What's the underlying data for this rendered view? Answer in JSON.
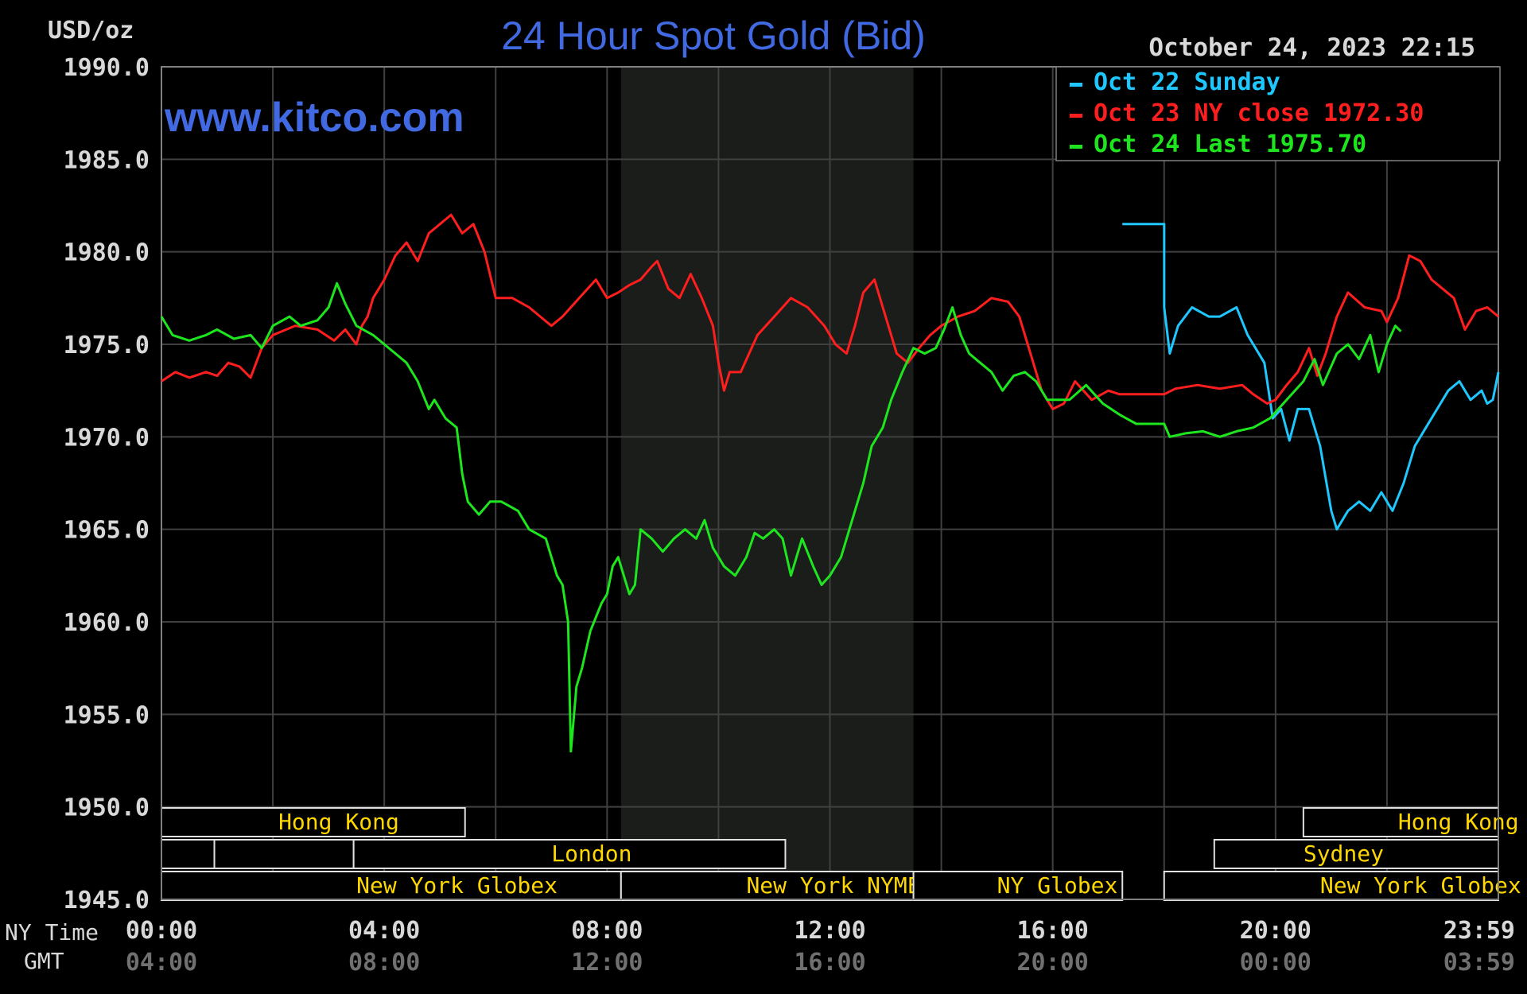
{
  "header": {
    "unit": "USD/oz",
    "title": "24 Hour Spot Gold (Bid)",
    "timestamp": "October 24, 2023 22:15",
    "watermark": "www.kitco.com"
  },
  "axis_labels": {
    "ny_time": "NY Time",
    "gmt": "GMT"
  },
  "colors": {
    "background": "#000000",
    "grid": "#404040",
    "plot_border": "#808080",
    "title": "#4169e1",
    "watermark": "#4169e1",
    "shaded_region": "#1a1d1a",
    "session_text": "#ffd700",
    "session_border": "#e0e0e0",
    "cyan": "#1ec8ff",
    "red": "#ff1e1e",
    "green": "#1ee61e",
    "axis_text": "#d8d8d8",
    "gmt_text": "#707070"
  },
  "legend": [
    {
      "label": "Oct 22 Sunday",
      "color": "#1ec8ff"
    },
    {
      "label": "Oct 23 NY close 1972.30",
      "color": "#ff1e1e"
    },
    {
      "label": "Oct 24 Last 1975.70",
      "color": "#1ee61e"
    }
  ],
  "sessions": [
    {
      "label": "Hong Kong",
      "row": 0,
      "start": 0,
      "end": 5.45,
      "label_at": 2.1
    },
    {
      "label": "Hong Kong",
      "row": 0,
      "start": 20.5,
      "end": 24,
      "label_at": 22.2
    },
    {
      "label": "",
      "row": 1,
      "start": 0,
      "end": 0.95
    },
    {
      "label": "",
      "row": 1,
      "start": 0.95,
      "end": 3.45
    },
    {
      "label": "London",
      "row": 1,
      "start": 3.45,
      "end": 11.2,
      "label_at": 7.0
    },
    {
      "label": "Sydney",
      "row": 1,
      "start": 18.9,
      "end": 24,
      "label_at": 20.5
    },
    {
      "label": "New York Globex",
      "row": 2,
      "start": 0,
      "end": 8.25,
      "label_at": 3.5
    },
    {
      "label": "New York NYMEX",
      "row": 2,
      "start": 8.25,
      "end": 13.5,
      "label_at": 10.5
    },
    {
      "label": "NY Globex",
      "row": 2,
      "start": 13.5,
      "end": 17.25,
      "label_at": 15.0
    },
    {
      "label": "New York Globex",
      "row": 2,
      "start": 18.0,
      "end": 24,
      "label_at": 20.8
    }
  ],
  "chart_data": {
    "type": "line",
    "title": "24 Hour Spot Gold (Bid)",
    "ylabel": "USD/oz",
    "xlabel": "NY Time",
    "xlim": [
      0,
      24
    ],
    "ylim": [
      1945,
      1990
    ],
    "y_ticks": [
      "1990.0",
      "1985.0",
      "1980.0",
      "1975.0",
      "1970.0",
      "1965.0",
      "1960.0",
      "1955.0",
      "1950.0",
      "1945.0"
    ],
    "y_tick_values": [
      1990,
      1985,
      1980,
      1975,
      1970,
      1965,
      1960,
      1955,
      1950,
      1945
    ],
    "x_ticks_ny": [
      "00:00",
      "04:00",
      "08:00",
      "12:00",
      "16:00",
      "20:00",
      "23:59"
    ],
    "x_ticks_gmt": [
      "04:00",
      "08:00",
      "12:00",
      "16:00",
      "20:00",
      "00:00",
      "03:59"
    ],
    "x_tick_values": [
      0,
      4,
      8,
      12,
      16,
      20,
      24
    ],
    "grid_vertical_hours": [
      2,
      4,
      6,
      8,
      10,
      12,
      14,
      16,
      18,
      20,
      22
    ],
    "grid": true,
    "legend_position": "top-right",
    "shaded_hours": [
      8.25,
      13.5
    ],
    "series": [
      {
        "name": "Oct 22 Sunday",
        "color": "#1ec8ff",
        "points": [
          [
            17.25,
            1981.5
          ],
          [
            18.0,
            1981.5
          ],
          [
            18.0,
            1977.0
          ],
          [
            18.1,
            1974.5
          ],
          [
            18.25,
            1976.0
          ],
          [
            18.5,
            1977.0
          ],
          [
            18.8,
            1976.5
          ],
          [
            19.0,
            1976.5
          ],
          [
            19.3,
            1977.0
          ],
          [
            19.5,
            1975.5
          ],
          [
            19.8,
            1974.0
          ],
          [
            19.95,
            1971.0
          ],
          [
            20.1,
            1971.5
          ],
          [
            20.25,
            1969.8
          ],
          [
            20.4,
            1971.5
          ],
          [
            20.6,
            1971.5
          ],
          [
            20.8,
            1969.5
          ],
          [
            21.0,
            1966.0
          ],
          [
            21.1,
            1965.0
          ],
          [
            21.3,
            1966.0
          ],
          [
            21.5,
            1966.5
          ],
          [
            21.7,
            1966.0
          ],
          [
            21.9,
            1967.0
          ],
          [
            22.1,
            1966.0
          ],
          [
            22.3,
            1967.5
          ],
          [
            22.5,
            1969.5
          ],
          [
            22.7,
            1970.5
          ],
          [
            22.9,
            1971.5
          ],
          [
            23.1,
            1972.5
          ],
          [
            23.3,
            1973.0
          ],
          [
            23.5,
            1972.0
          ],
          [
            23.7,
            1972.5
          ],
          [
            23.8,
            1971.8
          ],
          [
            23.9,
            1972.0
          ],
          [
            24.0,
            1973.5
          ]
        ]
      },
      {
        "name": "Oct 23 NY close 1972.30",
        "color": "#ff1e1e",
        "points": [
          [
            0.0,
            1973.0
          ],
          [
            0.25,
            1973.5
          ],
          [
            0.5,
            1973.2
          ],
          [
            0.8,
            1973.5
          ],
          [
            1.0,
            1973.3
          ],
          [
            1.2,
            1974.0
          ],
          [
            1.4,
            1973.8
          ],
          [
            1.6,
            1973.2
          ],
          [
            1.8,
            1974.8
          ],
          [
            2.0,
            1975.5
          ],
          [
            2.4,
            1976.0
          ],
          [
            2.8,
            1975.8
          ],
          [
            3.1,
            1975.2
          ],
          [
            3.3,
            1975.8
          ],
          [
            3.5,
            1975.0
          ],
          [
            3.6,
            1976.0
          ],
          [
            3.7,
            1976.5
          ],
          [
            3.8,
            1977.5
          ],
          [
            4.0,
            1978.5
          ],
          [
            4.2,
            1979.8
          ],
          [
            4.4,
            1980.5
          ],
          [
            4.6,
            1979.5
          ],
          [
            4.8,
            1981.0
          ],
          [
            5.0,
            1981.5
          ],
          [
            5.2,
            1982.0
          ],
          [
            5.4,
            1981.0
          ],
          [
            5.6,
            1981.5
          ],
          [
            5.8,
            1980.0
          ],
          [
            6.0,
            1977.5
          ],
          [
            6.3,
            1977.5
          ],
          [
            6.6,
            1977.0
          ],
          [
            6.8,
            1976.5
          ],
          [
            7.0,
            1976.0
          ],
          [
            7.2,
            1976.5
          ],
          [
            7.5,
            1977.5
          ],
          [
            7.8,
            1978.5
          ],
          [
            8.0,
            1977.5
          ],
          [
            8.2,
            1977.8
          ],
          [
            8.4,
            1978.2
          ],
          [
            8.6,
            1978.5
          ],
          [
            8.8,
            1979.2
          ],
          [
            8.9,
            1979.5
          ],
          [
            9.1,
            1978.0
          ],
          [
            9.3,
            1977.5
          ],
          [
            9.5,
            1978.8
          ],
          [
            9.7,
            1977.5
          ],
          [
            9.9,
            1976.0
          ],
          [
            10.0,
            1974.0
          ],
          [
            10.1,
            1972.5
          ],
          [
            10.2,
            1973.5
          ],
          [
            10.4,
            1973.5
          ],
          [
            10.7,
            1975.5
          ],
          [
            11.0,
            1976.5
          ],
          [
            11.3,
            1977.5
          ],
          [
            11.6,
            1977.0
          ],
          [
            11.9,
            1976.0
          ],
          [
            12.1,
            1975.0
          ],
          [
            12.3,
            1974.5
          ],
          [
            12.45,
            1976.0
          ],
          [
            12.6,
            1977.8
          ],
          [
            12.8,
            1978.5
          ],
          [
            13.0,
            1976.5
          ],
          [
            13.2,
            1974.5
          ],
          [
            13.4,
            1974.0
          ],
          [
            13.6,
            1974.8
          ],
          [
            13.8,
            1975.5
          ],
          [
            14.0,
            1976.0
          ],
          [
            14.3,
            1976.5
          ],
          [
            14.6,
            1976.8
          ],
          [
            14.9,
            1977.5
          ],
          [
            15.2,
            1977.3
          ],
          [
            15.4,
            1976.5
          ],
          [
            15.6,
            1974.5
          ],
          [
            15.8,
            1972.5
          ],
          [
            16.0,
            1971.5
          ],
          [
            16.2,
            1971.8
          ],
          [
            16.4,
            1973.0
          ],
          [
            16.7,
            1972.0
          ],
          [
            17.0,
            1972.5
          ],
          [
            17.2,
            1972.3
          ],
          [
            17.5,
            1972.3
          ],
          [
            18.0,
            1972.3
          ],
          [
            18.2,
            1972.6
          ],
          [
            18.6,
            1972.8
          ],
          [
            19.0,
            1972.6
          ],
          [
            19.4,
            1972.8
          ],
          [
            19.6,
            1972.3
          ],
          [
            19.85,
            1971.8
          ],
          [
            20.0,
            1972.0
          ],
          [
            20.2,
            1972.8
          ],
          [
            20.4,
            1973.5
          ],
          [
            20.6,
            1974.8
          ],
          [
            20.75,
            1973.3
          ],
          [
            20.9,
            1974.5
          ],
          [
            21.1,
            1976.5
          ],
          [
            21.3,
            1977.8
          ],
          [
            21.6,
            1977.0
          ],
          [
            21.9,
            1976.8
          ],
          [
            22.0,
            1976.2
          ],
          [
            22.2,
            1977.5
          ],
          [
            22.4,
            1979.8
          ],
          [
            22.6,
            1979.5
          ],
          [
            22.8,
            1978.5
          ],
          [
            23.0,
            1978.0
          ],
          [
            23.2,
            1977.5
          ],
          [
            23.4,
            1975.8
          ],
          [
            23.6,
            1976.8
          ],
          [
            23.8,
            1977.0
          ],
          [
            24.0,
            1976.5
          ]
        ]
      },
      {
        "name": "Oct 24 Last 1975.70",
        "color": "#1ee61e",
        "points": [
          [
            0.0,
            1976.5
          ],
          [
            0.2,
            1975.5
          ],
          [
            0.5,
            1975.2
          ],
          [
            0.8,
            1975.5
          ],
          [
            1.0,
            1975.8
          ],
          [
            1.3,
            1975.3
          ],
          [
            1.6,
            1975.5
          ],
          [
            1.8,
            1974.8
          ],
          [
            2.0,
            1976.0
          ],
          [
            2.3,
            1976.5
          ],
          [
            2.5,
            1976.0
          ],
          [
            2.8,
            1976.3
          ],
          [
            3.0,
            1977.0
          ],
          [
            3.15,
            1978.3
          ],
          [
            3.3,
            1977.2
          ],
          [
            3.5,
            1976.0
          ],
          [
            3.8,
            1975.5
          ],
          [
            4.0,
            1975.0
          ],
          [
            4.2,
            1974.5
          ],
          [
            4.4,
            1974.0
          ],
          [
            4.6,
            1973.0
          ],
          [
            4.8,
            1971.5
          ],
          [
            4.9,
            1972.0
          ],
          [
            5.1,
            1971.0
          ],
          [
            5.3,
            1970.5
          ],
          [
            5.4,
            1968.0
          ],
          [
            5.5,
            1966.5
          ],
          [
            5.7,
            1965.8
          ],
          [
            5.9,
            1966.5
          ],
          [
            6.1,
            1966.5
          ],
          [
            6.4,
            1966.0
          ],
          [
            6.6,
            1965.0
          ],
          [
            6.9,
            1964.5
          ],
          [
            7.0,
            1963.5
          ],
          [
            7.1,
            1962.5
          ],
          [
            7.2,
            1962.0
          ],
          [
            7.3,
            1960.0
          ],
          [
            7.35,
            1953.0
          ],
          [
            7.45,
            1956.5
          ],
          [
            7.55,
            1957.5
          ],
          [
            7.7,
            1959.5
          ],
          [
            7.9,
            1961.0
          ],
          [
            8.0,
            1961.5
          ],
          [
            8.1,
            1963.0
          ],
          [
            8.2,
            1963.5
          ],
          [
            8.3,
            1962.5
          ],
          [
            8.4,
            1961.5
          ],
          [
            8.5,
            1962.0
          ],
          [
            8.6,
            1965.0
          ],
          [
            8.8,
            1964.5
          ],
          [
            9.0,
            1963.8
          ],
          [
            9.2,
            1964.5
          ],
          [
            9.4,
            1965.0
          ],
          [
            9.6,
            1964.5
          ],
          [
            9.75,
            1965.5
          ],
          [
            9.9,
            1964.0
          ],
          [
            10.1,
            1963.0
          ],
          [
            10.3,
            1962.5
          ],
          [
            10.5,
            1963.5
          ],
          [
            10.65,
            1964.8
          ],
          [
            10.8,
            1964.5
          ],
          [
            11.0,
            1965.0
          ],
          [
            11.15,
            1964.5
          ],
          [
            11.3,
            1962.5
          ],
          [
            11.5,
            1964.5
          ],
          [
            11.7,
            1963.0
          ],
          [
            11.85,
            1962.0
          ],
          [
            12.0,
            1962.5
          ],
          [
            12.2,
            1963.5
          ],
          [
            12.4,
            1965.5
          ],
          [
            12.6,
            1967.5
          ],
          [
            12.75,
            1969.5
          ],
          [
            12.95,
            1970.5
          ],
          [
            13.1,
            1972.0
          ],
          [
            13.3,
            1973.5
          ],
          [
            13.5,
            1974.8
          ],
          [
            13.7,
            1974.5
          ],
          [
            13.9,
            1974.8
          ],
          [
            14.05,
            1975.8
          ],
          [
            14.2,
            1977.0
          ],
          [
            14.35,
            1975.5
          ],
          [
            14.5,
            1974.5
          ],
          [
            14.7,
            1974.0
          ],
          [
            14.9,
            1973.5
          ],
          [
            15.1,
            1972.5
          ],
          [
            15.3,
            1973.3
          ],
          [
            15.5,
            1973.5
          ],
          [
            15.7,
            1973.0
          ],
          [
            15.9,
            1972.0
          ],
          [
            16.1,
            1972.0
          ],
          [
            16.3,
            1972.0
          ],
          [
            16.6,
            1972.8
          ],
          [
            16.9,
            1971.8
          ],
          [
            17.2,
            1971.2
          ],
          [
            17.5,
            1970.7
          ],
          [
            18.0,
            1970.7
          ],
          [
            18.1,
            1970.0
          ],
          [
            18.4,
            1970.2
          ],
          [
            18.7,
            1970.3
          ],
          [
            19.0,
            1970.0
          ],
          [
            19.3,
            1970.3
          ],
          [
            19.6,
            1970.5
          ],
          [
            19.9,
            1971.0
          ],
          [
            20.2,
            1972.0
          ],
          [
            20.5,
            1973.0
          ],
          [
            20.7,
            1974.2
          ],
          [
            20.85,
            1972.8
          ],
          [
            21.1,
            1974.5
          ],
          [
            21.3,
            1975.0
          ],
          [
            21.5,
            1974.2
          ],
          [
            21.7,
            1975.5
          ],
          [
            21.85,
            1973.5
          ],
          [
            22.0,
            1975.0
          ],
          [
            22.15,
            1976.0
          ],
          [
            22.25,
            1975.7
          ]
        ]
      }
    ]
  }
}
